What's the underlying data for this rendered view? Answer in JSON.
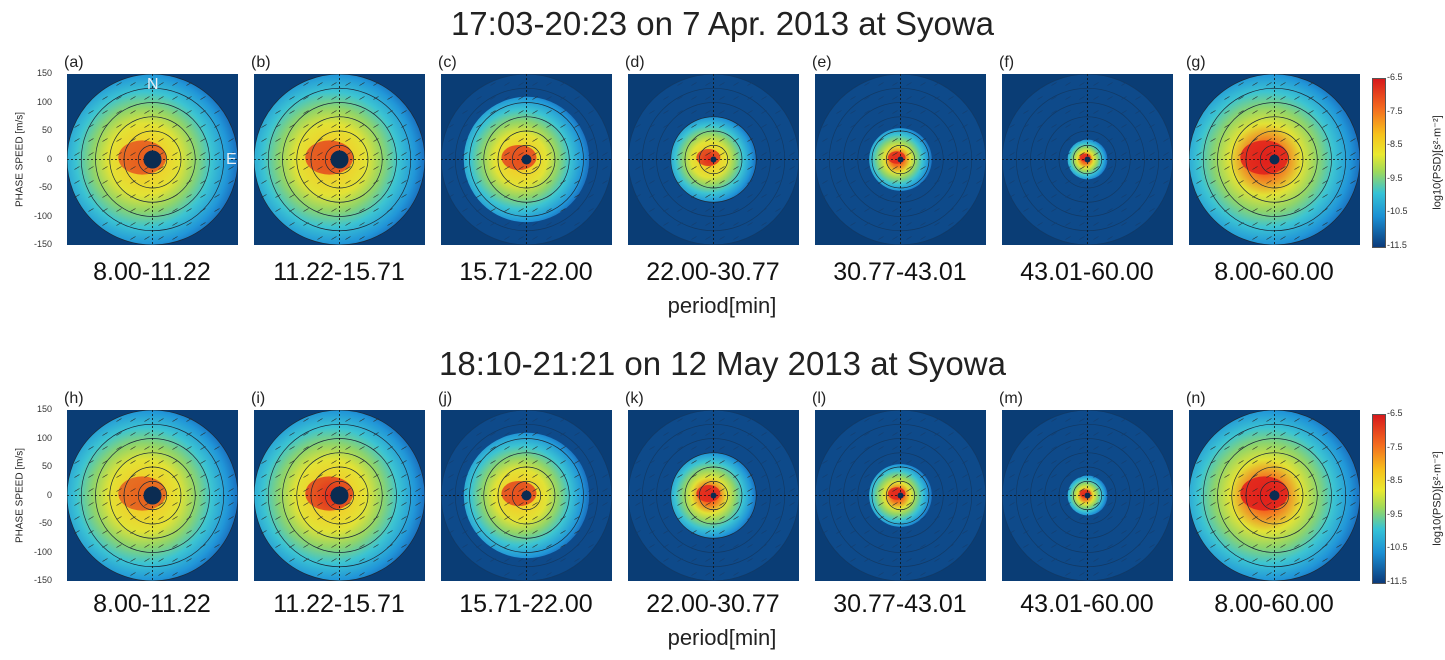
{
  "chart_data": [
    {
      "type": "heatmap",
      "title": "17:03-20:23 on 7 Apr. 2013 at Syowa",
      "ylabel": "PHASE SPEED [m/s]",
      "xlabel": "period[min]",
      "ylim": [
        -150,
        150
      ],
      "yticks": [
        "150",
        "100",
        "50",
        "0",
        "-50",
        "-100",
        "-150"
      ],
      "compass": {
        "north": "N",
        "east": "E"
      },
      "panels": [
        {
          "letter": "(a)",
          "period": "8.00-11.22",
          "max_speed": 150,
          "hotspot_intensity": 0.45
        },
        {
          "letter": "(b)",
          "period": "11.22-15.71",
          "max_speed": 150,
          "hotspot_intensity": 0.55
        },
        {
          "letter": "(c)",
          "period": "15.71-22.00",
          "max_speed": 110,
          "hotspot_intensity": 0.6
        },
        {
          "letter": "(d)",
          "period": "22.00-30.77",
          "max_speed": 75,
          "hotspot_intensity": 0.7
        },
        {
          "letter": "(e)",
          "period": "30.77-43.01",
          "max_speed": 55,
          "hotspot_intensity": 0.75
        },
        {
          "letter": "(f)",
          "period": "43.01-60.00",
          "max_speed": 35,
          "hotspot_intensity": 0.8
        },
        {
          "letter": "(g)",
          "period": "8.00-60.00",
          "max_speed": 150,
          "hotspot_intensity": 0.95
        }
      ]
    },
    {
      "type": "heatmap",
      "title": "18:10-21:21 on 12 May 2013 at Syowa",
      "ylabel": "PHASE SPEED [m/s]",
      "xlabel": "period[min]",
      "ylim": [
        -150,
        150
      ],
      "yticks": [
        "150",
        "100",
        "50",
        "0",
        "-50",
        "-100",
        "-150"
      ],
      "panels": [
        {
          "letter": "(h)",
          "period": "8.00-11.22",
          "max_speed": 150,
          "hotspot_intensity": 0.4
        },
        {
          "letter": "(i)",
          "period": "11.22-15.71",
          "max_speed": 150,
          "hotspot_intensity": 0.65
        },
        {
          "letter": "(j)",
          "period": "15.71-22.00",
          "max_speed": 110,
          "hotspot_intensity": 0.6
        },
        {
          "letter": "(k)",
          "period": "22.00-30.77",
          "max_speed": 75,
          "hotspot_intensity": 0.8
        },
        {
          "letter": "(l)",
          "period": "30.77-43.01",
          "max_speed": 55,
          "hotspot_intensity": 0.85
        },
        {
          "letter": "(m)",
          "period": "43.01-60.00",
          "max_speed": 35,
          "hotspot_intensity": 0.8
        },
        {
          "letter": "(n)",
          "period": "8.00-60.00",
          "max_speed": 150,
          "hotspot_intensity": 1.0
        }
      ]
    }
  ],
  "colorbar": {
    "label": "log10(PSD)[s²·m⁻²]",
    "ticks": [
      "-6.5",
      "-7.5",
      "-8.5",
      "-9.5",
      "-10.5",
      "-11.5"
    ],
    "range": [
      -11.5,
      -6.5
    ],
    "colors": [
      "#d7191c",
      "#f46d1f",
      "#f6c21c",
      "#e9e930",
      "#9fd95a",
      "#35c2d6",
      "#1b8fd3",
      "#0b3a7a"
    ]
  }
}
